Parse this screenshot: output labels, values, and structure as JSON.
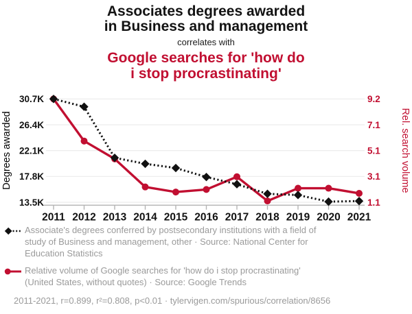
{
  "header": {
    "title_lines": [
      "Associates degrees awarded",
      "in Business and management"
    ],
    "connector": "correlates with",
    "subtitle_lines": [
      "Google searches for 'how do",
      "i stop procrastinating'"
    ]
  },
  "chart_data": {
    "type": "line",
    "x": [
      2011,
      2012,
      2013,
      2014,
      2015,
      2016,
      2017,
      2018,
      2019,
      2020,
      2021
    ],
    "x_ticks": [
      "2011",
      "2012",
      "2013",
      "2014",
      "2015",
      "2016",
      "2017",
      "2018",
      "2019",
      "2020",
      "2021"
    ],
    "series": [
      {
        "name": "Degrees awarded",
        "axis": "left",
        "color": "#111111",
        "style": "dotted-line-diamond-markers",
        "values": [
          30700,
          29400,
          20900,
          19900,
          19200,
          17700,
          16500,
          14900,
          14700,
          13600,
          13700
        ]
      },
      {
        "name": "Rel. search volume",
        "axis": "right",
        "color": "#c10f31",
        "style": "solid-line-circle-markers",
        "values": [
          9.2,
          5.9,
          4.5,
          2.3,
          1.9,
          2.1,
          3.1,
          1.2,
          2.2,
          2.2,
          1.8
        ]
      }
    ],
    "left_axis": {
      "label": "Degrees awarded",
      "ticks": [
        "30.7K",
        "26.4K",
        "22.1K",
        "17.8K",
        "13.5K"
      ],
      "tick_values": [
        30700,
        26400,
        22100,
        17800,
        13500
      ],
      "range": [
        13500,
        30700
      ]
    },
    "right_axis": {
      "label": "Rel. search volume",
      "ticks": [
        "9.2",
        "7.1",
        "5.1",
        "3.1",
        "1.1"
      ],
      "tick_values": [
        9.2,
        7.1,
        5.1,
        3.1,
        1.1
      ],
      "range": [
        1.1,
        9.2
      ]
    },
    "grid": true,
    "legend_position": "bottom"
  },
  "legend": {
    "items": [
      {
        "marker": "black-diamond-dotted",
        "lines": [
          "Associate's degrees conferred by postsecondary institutions with a field of",
          "study of Business and management, other · Source: National Center for",
          "Education Statistics"
        ]
      },
      {
        "marker": "red-circle-solid",
        "lines": [
          "Relative volume of Google searches for 'how do i stop procrastinating'",
          "(United States, without quotes) · Source: Google Trends"
        ]
      }
    ]
  },
  "footer": {
    "stats": "2011-2021, r=0.899, r²=0.808, p<0.01 · tylervigen.com/spurious/correlation/8656"
  },
  "colors": {
    "accent_red": "#c10f31",
    "series_black": "#111111",
    "text_gray": "#9a9a9a",
    "grid": "#ececec",
    "axis": "#b3b3b3",
    "title_ink": "#131313"
  }
}
